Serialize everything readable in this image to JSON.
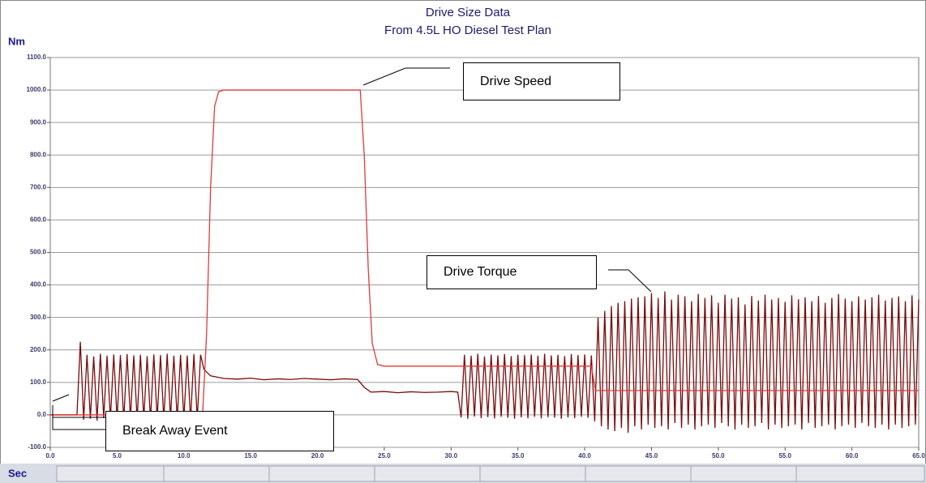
{
  "chart_data": {
    "type": "line",
    "title": "Drive Size Data",
    "subtitle": "From 4.5L HO Diesel Test Plan",
    "y_label": "Nm",
    "x_label": "Sec",
    "xlim": [
      0,
      65
    ],
    "ylim": [
      -100,
      1100
    ],
    "xticks": [
      {
        "value": 0,
        "label": "0.0"
      },
      {
        "value": 5,
        "label": "5.0"
      },
      {
        "value": 10,
        "label": "10.0"
      },
      {
        "value": 15,
        "label": "15.0"
      },
      {
        "value": 20,
        "label": "20.0"
      },
      {
        "value": 25,
        "label": "25.0"
      },
      {
        "value": 30,
        "label": "30.0"
      },
      {
        "value": 35,
        "label": "35.0"
      },
      {
        "value": 40,
        "label": "40.0"
      },
      {
        "value": 45,
        "label": "45.0"
      },
      {
        "value": 50,
        "label": "50.0"
      },
      {
        "value": 55,
        "label": "55.0"
      },
      {
        "value": 60,
        "label": "60.0"
      },
      {
        "value": 65,
        "label": "65.0"
      }
    ],
    "yticks": [
      {
        "value": -100,
        "label": "-100.0"
      },
      {
        "value": 0,
        "label": "0.0"
      },
      {
        "value": 100,
        "label": "100.0"
      },
      {
        "value": 200,
        "label": "200.0"
      },
      {
        "value": 300,
        "label": "300.0"
      },
      {
        "value": 400,
        "label": "400.0"
      },
      {
        "value": 500,
        "label": "500.0"
      },
      {
        "value": 600,
        "label": "600.0"
      },
      {
        "value": 700,
        "label": "700.0"
      },
      {
        "value": 800,
        "label": "800.0"
      },
      {
        "value": 900,
        "label": "900.0"
      },
      {
        "value": 1000,
        "label": "1000.0"
      },
      {
        "value": 1100,
        "label": "1100.0"
      }
    ],
    "grid": true,
    "series": [
      {
        "name": "Drive Torque",
        "color": "#7a0a0a",
        "x": [
          0,
          2,
          2.25,
          2.5,
          2.75,
          3,
          3.25,
          3.5,
          3.75,
          4,
          4.25,
          4.5,
          4.75,
          5,
          5.25,
          5.5,
          5.75,
          6,
          6.25,
          6.5,
          6.75,
          7,
          7.25,
          7.5,
          7.75,
          8,
          8.25,
          8.5,
          8.75,
          9,
          9.25,
          9.5,
          9.75,
          10,
          10.25,
          10.5,
          10.75,
          11,
          11.25,
          11.5,
          12,
          13,
          14,
          15,
          16,
          17,
          18,
          19,
          20,
          21,
          22,
          23,
          23.5,
          24,
          25,
          26,
          27,
          28,
          29,
          30,
          30.5,
          30.75,
          31,
          31.25,
          31.5,
          31.75,
          32,
          32.25,
          32.5,
          32.75,
          33,
          33.25,
          33.5,
          33.75,
          34,
          34.25,
          34.5,
          34.75,
          35,
          35.25,
          35.5,
          35.75,
          36,
          36.25,
          36.5,
          36.75,
          37,
          37.25,
          37.5,
          37.75,
          38,
          38.25,
          38.5,
          38.75,
          39,
          39.25,
          39.5,
          39.75,
          40,
          40.25,
          40.5,
          40.75,
          41,
          41.25,
          41.5,
          41.75,
          42,
          42.25,
          42.5,
          42.75,
          43,
          43.25,
          43.5,
          43.75,
          44,
          44.25,
          44.5,
          44.75,
          45,
          45.25,
          45.5,
          45.75,
          46,
          46.25,
          46.5,
          46.75,
          47,
          47.25,
          47.5,
          47.75,
          48,
          48.25,
          48.5,
          48.75,
          49,
          49.25,
          49.5,
          49.75,
          50,
          50.25,
          50.5,
          50.75,
          51,
          51.25,
          51.5,
          51.75,
          52,
          52.25,
          52.5,
          52.75,
          53,
          53.25,
          53.5,
          53.75,
          54,
          54.25,
          54.5,
          54.75,
          55,
          55.25,
          55.5,
          55.75,
          56,
          56.25,
          56.5,
          56.75,
          57,
          57.25,
          57.5,
          57.75,
          58,
          58.25,
          58.5,
          58.75,
          59,
          59.25,
          59.5,
          59.75,
          60,
          60.25,
          60.5,
          60.75,
          61,
          61.25,
          61.5,
          61.75,
          62,
          62.25,
          62.5,
          62.75,
          63,
          63.25,
          63.5,
          63.75,
          64,
          64.25,
          64.5,
          64.75,
          65
        ],
        "values": [
          0,
          0,
          225,
          -15,
          185,
          -12,
          180,
          -18,
          188,
          -10,
          182,
          -15,
          186,
          -12,
          184,
          -16,
          187,
          -11,
          183,
          -14,
          185,
          -13,
          181,
          -17,
          186,
          -12,
          184,
          -15,
          188,
          -10,
          182,
          -14,
          185,
          -13,
          183,
          -16,
          187,
          -12,
          185,
          140,
          120,
          112,
          110,
          113,
          108,
          111,
          109,
          112,
          110,
          108,
          111,
          109,
          85,
          70,
          72,
          68,
          71,
          69,
          70,
          72,
          70,
          -8,
          185,
          -12,
          182,
          -5,
          188,
          -10,
          180,
          -7,
          186,
          -11,
          183,
          -6,
          187,
          -9,
          181,
          -12,
          185,
          -8,
          184,
          -10,
          186,
          -6,
          182,
          -11,
          188,
          -7,
          183,
          -9,
          185,
          -12,
          181,
          -8,
          187,
          -10,
          184,
          -6,
          186,
          -9,
          183,
          -20,
          300,
          -35,
          320,
          -45,
          335,
          -50,
          345,
          -40,
          350,
          -55,
          358,
          -35,
          362,
          -45,
          365,
          -30,
          375,
          -40,
          360,
          -35,
          380,
          -45,
          355,
          -25,
          370,
          -40,
          365,
          -30,
          350,
          -45,
          372,
          -35,
          360,
          -30,
          368,
          -40,
          345,
          -25,
          370,
          -35,
          358,
          -45,
          362,
          -30,
          340,
          -40,
          366,
          -35,
          352,
          -25,
          370,
          -45,
          355,
          -30,
          360,
          -40,
          348,
          -35,
          368,
          -30,
          356,
          -45,
          362,
          -25,
          350,
          -40,
          366,
          -35,
          345,
          -30,
          360,
          -45,
          372,
          -35,
          358,
          -30,
          350,
          -40,
          365,
          -25,
          355,
          -35,
          362,
          -40,
          370,
          -30,
          352,
          -45,
          360,
          -30,
          365,
          -40,
          350,
          -35,
          368,
          -30,
          355
        ]
      },
      {
        "name": "Drive Speed",
        "color": "#e03a3a",
        "x": [
          0,
          11.4,
          11.7,
          12,
          12.3,
          12.6,
          13,
          23.2,
          23.5,
          23.8,
          24.1,
          24.5,
          25,
          40.5,
          40.8,
          65
        ],
        "values": [
          0,
          0,
          250,
          700,
          950,
          995,
          1000,
          1000,
          800,
          450,
          220,
          155,
          150,
          150,
          75,
          75
        ]
      }
    ],
    "annotations": [
      {
        "text": "Break Away Event"
      }
    ]
  }
}
